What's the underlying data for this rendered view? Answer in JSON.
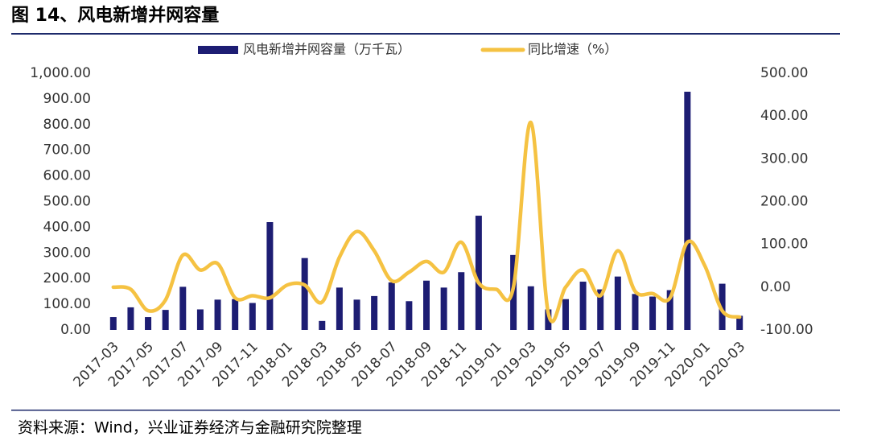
{
  "chart_data": {
    "type": "bar",
    "title": "图 14、风电新增并网容量",
    "source": "资料来源：Wind，兴业证券经济与金融研究院整理",
    "categories": [
      "2017-03",
      null,
      "2017-05",
      null,
      "2017-07",
      null,
      "2017-09",
      null,
      "2017-11",
      null,
      "2018-01",
      null,
      "2018-03",
      null,
      "2018-05",
      null,
      "2018-07",
      null,
      "2018-09",
      null,
      "2018-11",
      null,
      "2019-01",
      null,
      "2019-03",
      null,
      "2019-05",
      null,
      "2019-07",
      null,
      "2019-09",
      null,
      "2019-11",
      null,
      "2020-01",
      null,
      "2020-03"
    ],
    "series": [
      {
        "name": "风电新增并网容量（万千瓦）",
        "type": "bar",
        "color": "#1d1d73",
        "values": [
          50,
          88,
          50,
          78,
          168,
          80,
          118,
          120,
          105,
          420,
          null,
          280,
          35,
          165,
          118,
          132,
          185,
          112,
          192,
          165,
          225,
          445,
          null,
          292,
          170,
          80,
          120,
          188,
          158,
          208,
          140,
          130,
          155,
          928,
          null,
          180,
          55
        ]
      },
      {
        "name": "同比增速（%）",
        "type": "line",
        "axis": "y2",
        "color": "#f5c242",
        "values": [
          0,
          -5,
          -55,
          -30,
          75,
          40,
          55,
          -25,
          -20,
          -25,
          5,
          5,
          -35,
          70,
          130,
          85,
          15,
          35,
          60,
          35,
          105,
          10,
          -5,
          0,
          385,
          -60,
          0,
          40,
          -20,
          85,
          -10,
          -15,
          -25,
          105,
          50,
          -55,
          -70
        ]
      }
    ],
    "ylim": [
      0,
      1000
    ],
    "yticks": [
      {
        "value": 0,
        "label": "0.00"
      },
      {
        "value": 100,
        "label": "100.00"
      },
      {
        "value": 200,
        "label": "200.00"
      },
      {
        "value": 300,
        "label": "300.00"
      },
      {
        "value": 400,
        "label": "400.00"
      },
      {
        "value": 500,
        "label": "500.00"
      },
      {
        "value": 600,
        "label": "600.00"
      },
      {
        "value": 700,
        "label": "700.00"
      },
      {
        "value": 800,
        "label": "800.00"
      },
      {
        "value": 900,
        "label": "900.00"
      },
      {
        "value": 1000,
        "label": "1,000.00"
      }
    ],
    "y2lim": [
      -100,
      500
    ],
    "y2ticks": [
      {
        "value": -100,
        "label": "-100.00"
      },
      {
        "value": 0,
        "label": "0.00"
      },
      {
        "value": 100,
        "label": "100.00"
      },
      {
        "value": 200,
        "label": "200.00"
      },
      {
        "value": 300,
        "label": "300.00"
      },
      {
        "value": 400,
        "label": "400.00"
      },
      {
        "value": 500,
        "label": "500.00"
      }
    ],
    "legend": "top"
  }
}
